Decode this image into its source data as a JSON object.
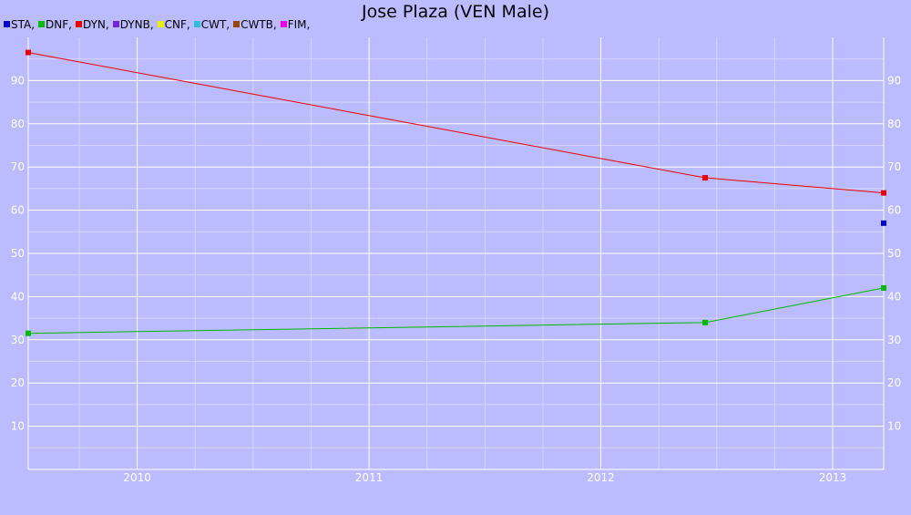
{
  "chart_data": {
    "type": "line",
    "title": "Jose Plaza (VEN Male)",
    "xlabel": "",
    "ylabel": "",
    "xlim": [
      2009.53,
      2013.22
    ],
    "ylim": [
      0,
      100
    ],
    "grid": true,
    "legend_placement": "top-left",
    "x_ticks": [
      2010,
      2011,
      2012,
      2013
    ],
    "y_ticks": [
      10,
      20,
      30,
      40,
      50,
      60,
      70,
      80,
      90
    ],
    "legend": [
      {
        "label": "STA,",
        "color": "#0000cc"
      },
      {
        "label": "DNF,",
        "color": "#00bb00"
      },
      {
        "label": "DYN,",
        "color": "#ee0000"
      },
      {
        "label": "DYNB,",
        "color": "#7722dd"
      },
      {
        "label": "CNF,",
        "color": "#eeee00"
      },
      {
        "label": "CWT,",
        "color": "#33bbdd"
      },
      {
        "label": "CWTB,",
        "color": "#994400"
      },
      {
        "label": "FIM,",
        "color": "#ee00ee"
      }
    ],
    "series": [
      {
        "name": "STA",
        "color": "#0000cc",
        "points": [
          [
            2013.22,
            57.0
          ]
        ]
      },
      {
        "name": "DNF",
        "color": "#00bb00",
        "points": [
          [
            2009.53,
            31.5
          ],
          [
            2012.45,
            34.0
          ],
          [
            2013.22,
            42.0
          ]
        ]
      },
      {
        "name": "DYN",
        "color": "#ee0000",
        "points": [
          [
            2009.53,
            96.5
          ],
          [
            2012.45,
            67.5
          ],
          [
            2013.22,
            64.0
          ]
        ]
      }
    ]
  }
}
